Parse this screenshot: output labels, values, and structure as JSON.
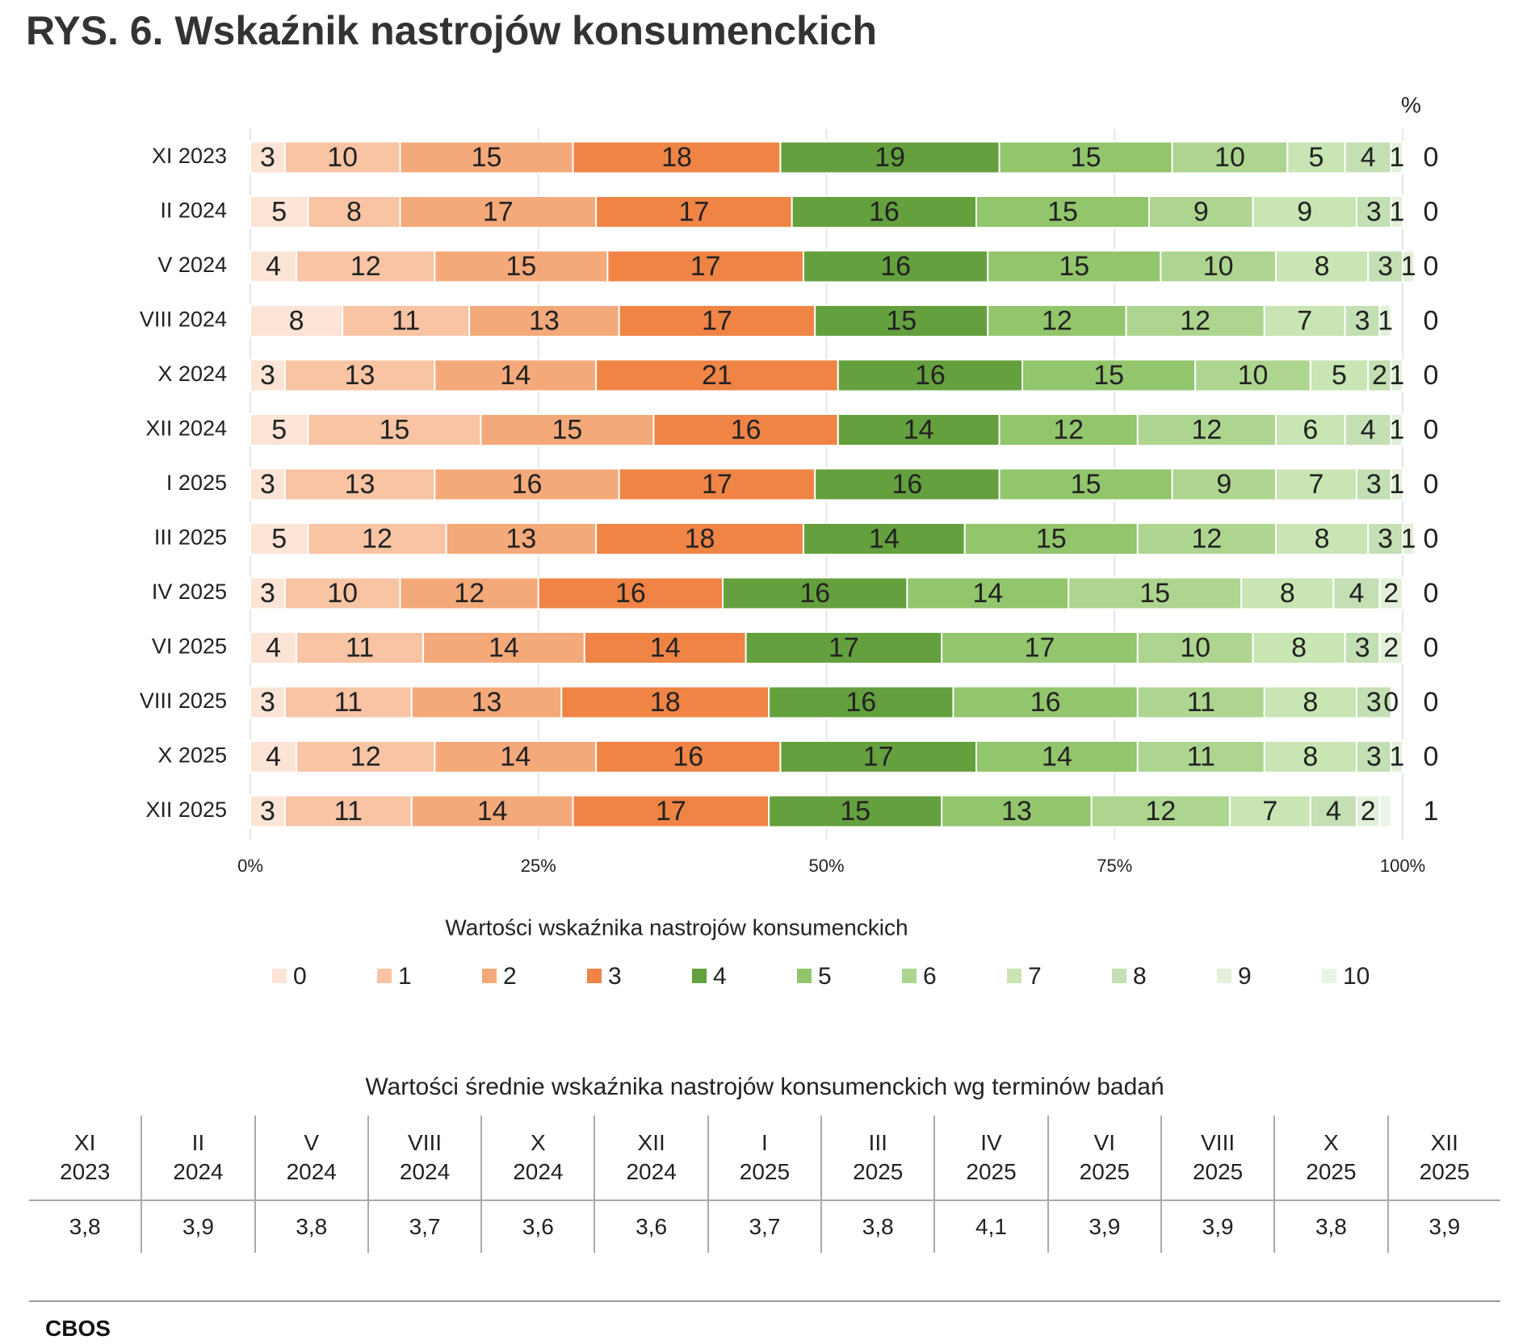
{
  "chart_data": {
    "type": "stacked-bar-horizontal",
    "title": "RYS. 6. Wskaźnik nastrojów konsumenckich",
    "unit_label": "%",
    "legend_title": "Wartości wskaźnika nastrojów konsumenckich",
    "categories": [
      "XI 2023",
      "II 2024",
      "V 2024",
      "VIII 2024",
      "X 2024",
      "XII 2024",
      "I 2025",
      "III 2025",
      "IV 2025",
      "VI 2025",
      "VIII 2025",
      "X 2025",
      "XII 2025"
    ],
    "series": [
      {
        "name": "0",
        "color": "#fce4d6",
        "values": [
          3,
          5,
          4,
          8,
          3,
          5,
          3,
          5,
          3,
          4,
          3,
          4,
          3
        ]
      },
      {
        "name": "1",
        "color": "#f8c4a4",
        "values": [
          10,
          8,
          12,
          11,
          13,
          15,
          13,
          12,
          10,
          11,
          11,
          12,
          11
        ]
      },
      {
        "name": "2",
        "color": "#f4a97a",
        "values": [
          15,
          17,
          15,
          13,
          14,
          15,
          16,
          13,
          12,
          14,
          13,
          14,
          14
        ]
      },
      {
        "name": "3",
        "color": "#ef8445",
        "values": [
          18,
          17,
          17,
          17,
          21,
          16,
          17,
          18,
          16,
          14,
          18,
          16,
          17
        ]
      },
      {
        "name": "4",
        "color": "#64a03e",
        "values": [
          19,
          16,
          16,
          15,
          16,
          14,
          16,
          14,
          16,
          17,
          16,
          17,
          15
        ]
      },
      {
        "name": "5",
        "color": "#92c56c",
        "values": [
          15,
          15,
          15,
          12,
          15,
          12,
          15,
          15,
          14,
          17,
          16,
          14,
          13
        ]
      },
      {
        "name": "6",
        "color": "#add58f",
        "values": [
          10,
          9,
          10,
          12,
          10,
          12,
          9,
          12,
          15,
          10,
          11,
          11,
          12
        ]
      },
      {
        "name": "7",
        "color": "#c8e5b3",
        "values": [
          5,
          9,
          8,
          7,
          5,
          6,
          7,
          8,
          8,
          8,
          8,
          8,
          7
        ]
      },
      {
        "name": "8",
        "color": "#c3dfb3",
        "values": [
          4,
          3,
          3,
          3,
          2,
          4,
          3,
          3,
          4,
          3,
          3,
          3,
          4
        ]
      },
      {
        "name": "9",
        "color": "#e2f0d9",
        "values": [
          1,
          1,
          1,
          1,
          1,
          1,
          1,
          1,
          2,
          2,
          0,
          1,
          2
        ]
      },
      {
        "name": "10",
        "color": "#eaf4e4",
        "values": [
          0,
          0,
          0,
          0,
          0,
          0,
          0,
          0,
          0,
          0,
          0,
          0,
          1
        ]
      }
    ],
    "xlim": [
      0,
      100
    ],
    "xticks": [
      {
        "value": 0,
        "label": "0%"
      },
      {
        "value": 25,
        "label": "25%"
      },
      {
        "value": 50,
        "label": "50%"
      },
      {
        "value": 75,
        "label": "75%"
      },
      {
        "value": 100,
        "label": "100%"
      }
    ],
    "grid": true
  },
  "table": {
    "title": "Wartości średnie wskaźnika nastrojów konsumenckich wg terminów badań",
    "values": [
      "3,8",
      "3,9",
      "3,8",
      "3,7",
      "3,6",
      "3,6",
      "3,7",
      "3,8",
      "4,1",
      "3,9",
      "3,9",
      "3,8",
      "3,9"
    ]
  },
  "footer": "CBOS"
}
